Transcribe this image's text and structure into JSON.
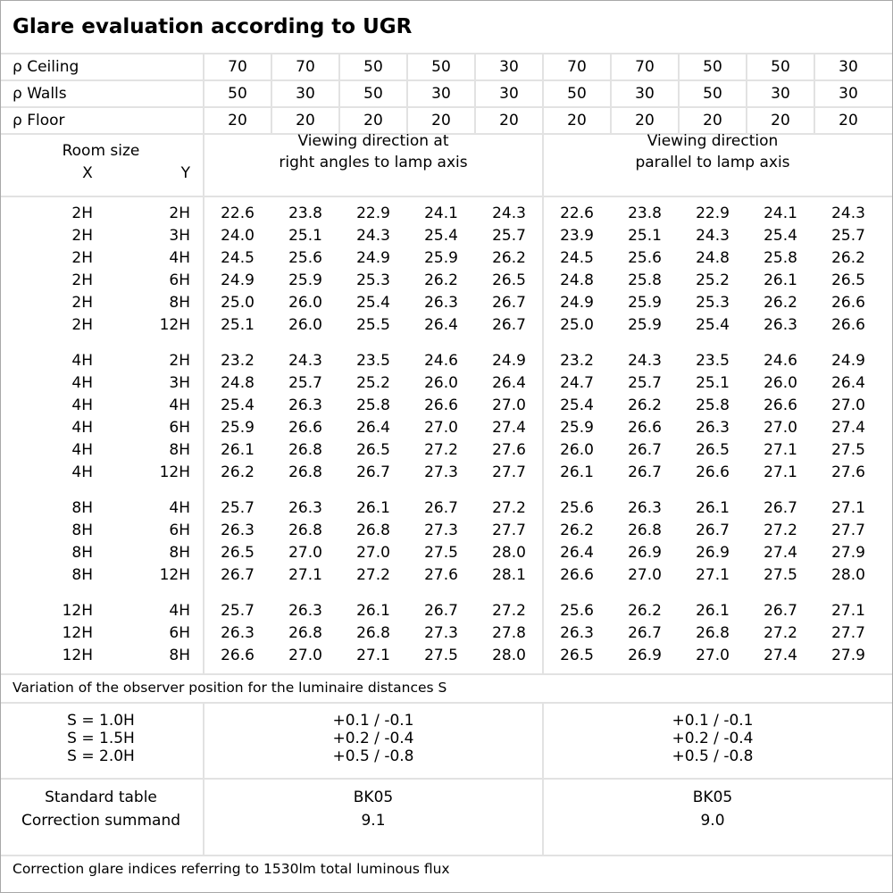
{
  "title": "Glare evaluation according to UGR",
  "reflectances": [
    {
      "label": "ρ Ceiling",
      "values": [
        "70",
        "70",
        "50",
        "50",
        "30",
        "70",
        "70",
        "50",
        "50",
        "30"
      ]
    },
    {
      "label": "ρ Walls",
      "values": [
        "50",
        "30",
        "50",
        "30",
        "30",
        "50",
        "30",
        "50",
        "30",
        "30"
      ]
    },
    {
      "label": "ρ Floor",
      "values": [
        "20",
        "20",
        "20",
        "20",
        "20",
        "20",
        "20",
        "20",
        "20",
        "20"
      ]
    }
  ],
  "header": {
    "room_size": "Room size",
    "x_label": "X",
    "y_label": "Y",
    "direction_right_angles": [
      "Viewing direction at",
      "right angles to lamp axis"
    ],
    "direction_parallel": [
      "Viewing direction",
      "parallel to lamp axis"
    ]
  },
  "groups": [
    {
      "rows": [
        {
          "x": "2H",
          "y": "2H",
          "v": [
            "22.6",
            "23.8",
            "22.9",
            "24.1",
            "24.3",
            "22.6",
            "23.8",
            "22.9",
            "24.1",
            "24.3"
          ]
        },
        {
          "x": "2H",
          "y": "3H",
          "v": [
            "24.0",
            "25.1",
            "24.3",
            "25.4",
            "25.7",
            "23.9",
            "25.1",
            "24.3",
            "25.4",
            "25.7"
          ]
        },
        {
          "x": "2H",
          "y": "4H",
          "v": [
            "24.5",
            "25.6",
            "24.9",
            "25.9",
            "26.2",
            "24.5",
            "25.6",
            "24.8",
            "25.8",
            "26.2"
          ]
        },
        {
          "x": "2H",
          "y": "6H",
          "v": [
            "24.9",
            "25.9",
            "25.3",
            "26.2",
            "26.5",
            "24.8",
            "25.8",
            "25.2",
            "26.1",
            "26.5"
          ]
        },
        {
          "x": "2H",
          "y": "8H",
          "v": [
            "25.0",
            "26.0",
            "25.4",
            "26.3",
            "26.7",
            "24.9",
            "25.9",
            "25.3",
            "26.2",
            "26.6"
          ]
        },
        {
          "x": "2H",
          "y": "12H",
          "v": [
            "25.1",
            "26.0",
            "25.5",
            "26.4",
            "26.7",
            "25.0",
            "25.9",
            "25.4",
            "26.3",
            "26.6"
          ]
        }
      ]
    },
    {
      "rows": [
        {
          "x": "4H",
          "y": "2H",
          "v": [
            "23.2",
            "24.3",
            "23.5",
            "24.6",
            "24.9",
            "23.2",
            "24.3",
            "23.5",
            "24.6",
            "24.9"
          ]
        },
        {
          "x": "4H",
          "y": "3H",
          "v": [
            "24.8",
            "25.7",
            "25.2",
            "26.0",
            "26.4",
            "24.7",
            "25.7",
            "25.1",
            "26.0",
            "26.4"
          ]
        },
        {
          "x": "4H",
          "y": "4H",
          "v": [
            "25.4",
            "26.3",
            "25.8",
            "26.6",
            "27.0",
            "25.4",
            "26.2",
            "25.8",
            "26.6",
            "27.0"
          ]
        },
        {
          "x": "4H",
          "y": "6H",
          "v": [
            "25.9",
            "26.6",
            "26.4",
            "27.0",
            "27.4",
            "25.9",
            "26.6",
            "26.3",
            "27.0",
            "27.4"
          ]
        },
        {
          "x": "4H",
          "y": "8H",
          "v": [
            "26.1",
            "26.8",
            "26.5",
            "27.2",
            "27.6",
            "26.0",
            "26.7",
            "26.5",
            "27.1",
            "27.5"
          ]
        },
        {
          "x": "4H",
          "y": "12H",
          "v": [
            "26.2",
            "26.8",
            "26.7",
            "27.3",
            "27.7",
            "26.1",
            "26.7",
            "26.6",
            "27.1",
            "27.6"
          ]
        }
      ]
    },
    {
      "rows": [
        {
          "x": "8H",
          "y": "4H",
          "v": [
            "25.7",
            "26.3",
            "26.1",
            "26.7",
            "27.2",
            "25.6",
            "26.3",
            "26.1",
            "26.7",
            "27.1"
          ]
        },
        {
          "x": "8H",
          "y": "6H",
          "v": [
            "26.3",
            "26.8",
            "26.8",
            "27.3",
            "27.7",
            "26.2",
            "26.8",
            "26.7",
            "27.2",
            "27.7"
          ]
        },
        {
          "x": "8H",
          "y": "8H",
          "v": [
            "26.5",
            "27.0",
            "27.0",
            "27.5",
            "28.0",
            "26.4",
            "26.9",
            "26.9",
            "27.4",
            "27.9"
          ]
        },
        {
          "x": "8H",
          "y": "12H",
          "v": [
            "26.7",
            "27.1",
            "27.2",
            "27.6",
            "28.1",
            "26.6",
            "27.0",
            "27.1",
            "27.5",
            "28.0"
          ]
        }
      ]
    },
    {
      "rows": [
        {
          "x": "12H",
          "y": "4H",
          "v": [
            "25.7",
            "26.3",
            "26.1",
            "26.7",
            "27.2",
            "25.6",
            "26.2",
            "26.1",
            "26.7",
            "27.1"
          ]
        },
        {
          "x": "12H",
          "y": "6H",
          "v": [
            "26.3",
            "26.8",
            "26.8",
            "27.3",
            "27.8",
            "26.3",
            "26.7",
            "26.8",
            "27.2",
            "27.7"
          ]
        },
        {
          "x": "12H",
          "y": "8H",
          "v": [
            "26.6",
            "27.0",
            "27.1",
            "27.5",
            "28.0",
            "26.5",
            "26.9",
            "27.0",
            "27.4",
            "27.9"
          ]
        }
      ]
    }
  ],
  "variation": {
    "label": "Variation of the observer position for the luminaire distances S",
    "rows": [
      {
        "s": "S = 1.0H",
        "right_angles": "+0.1 / -0.1",
        "parallel": "+0.1 / -0.1"
      },
      {
        "s": "S = 1.5H",
        "right_angles": "+0.2 / -0.4",
        "parallel": "+0.2 / -0.4"
      },
      {
        "s": "S = 2.0H",
        "right_angles": "+0.5 / -0.8",
        "parallel": "+0.5 / -0.8"
      }
    ]
  },
  "standard": {
    "standard_table_label": "Standard table",
    "correction_label": "Correction summand",
    "right_angles": {
      "table": "BK05",
      "correction": "9.1"
    },
    "parallel": {
      "table": "BK05",
      "correction": "9.0"
    }
  },
  "footer": "Correction glare indices referring to 1530lm total luminous flux"
}
